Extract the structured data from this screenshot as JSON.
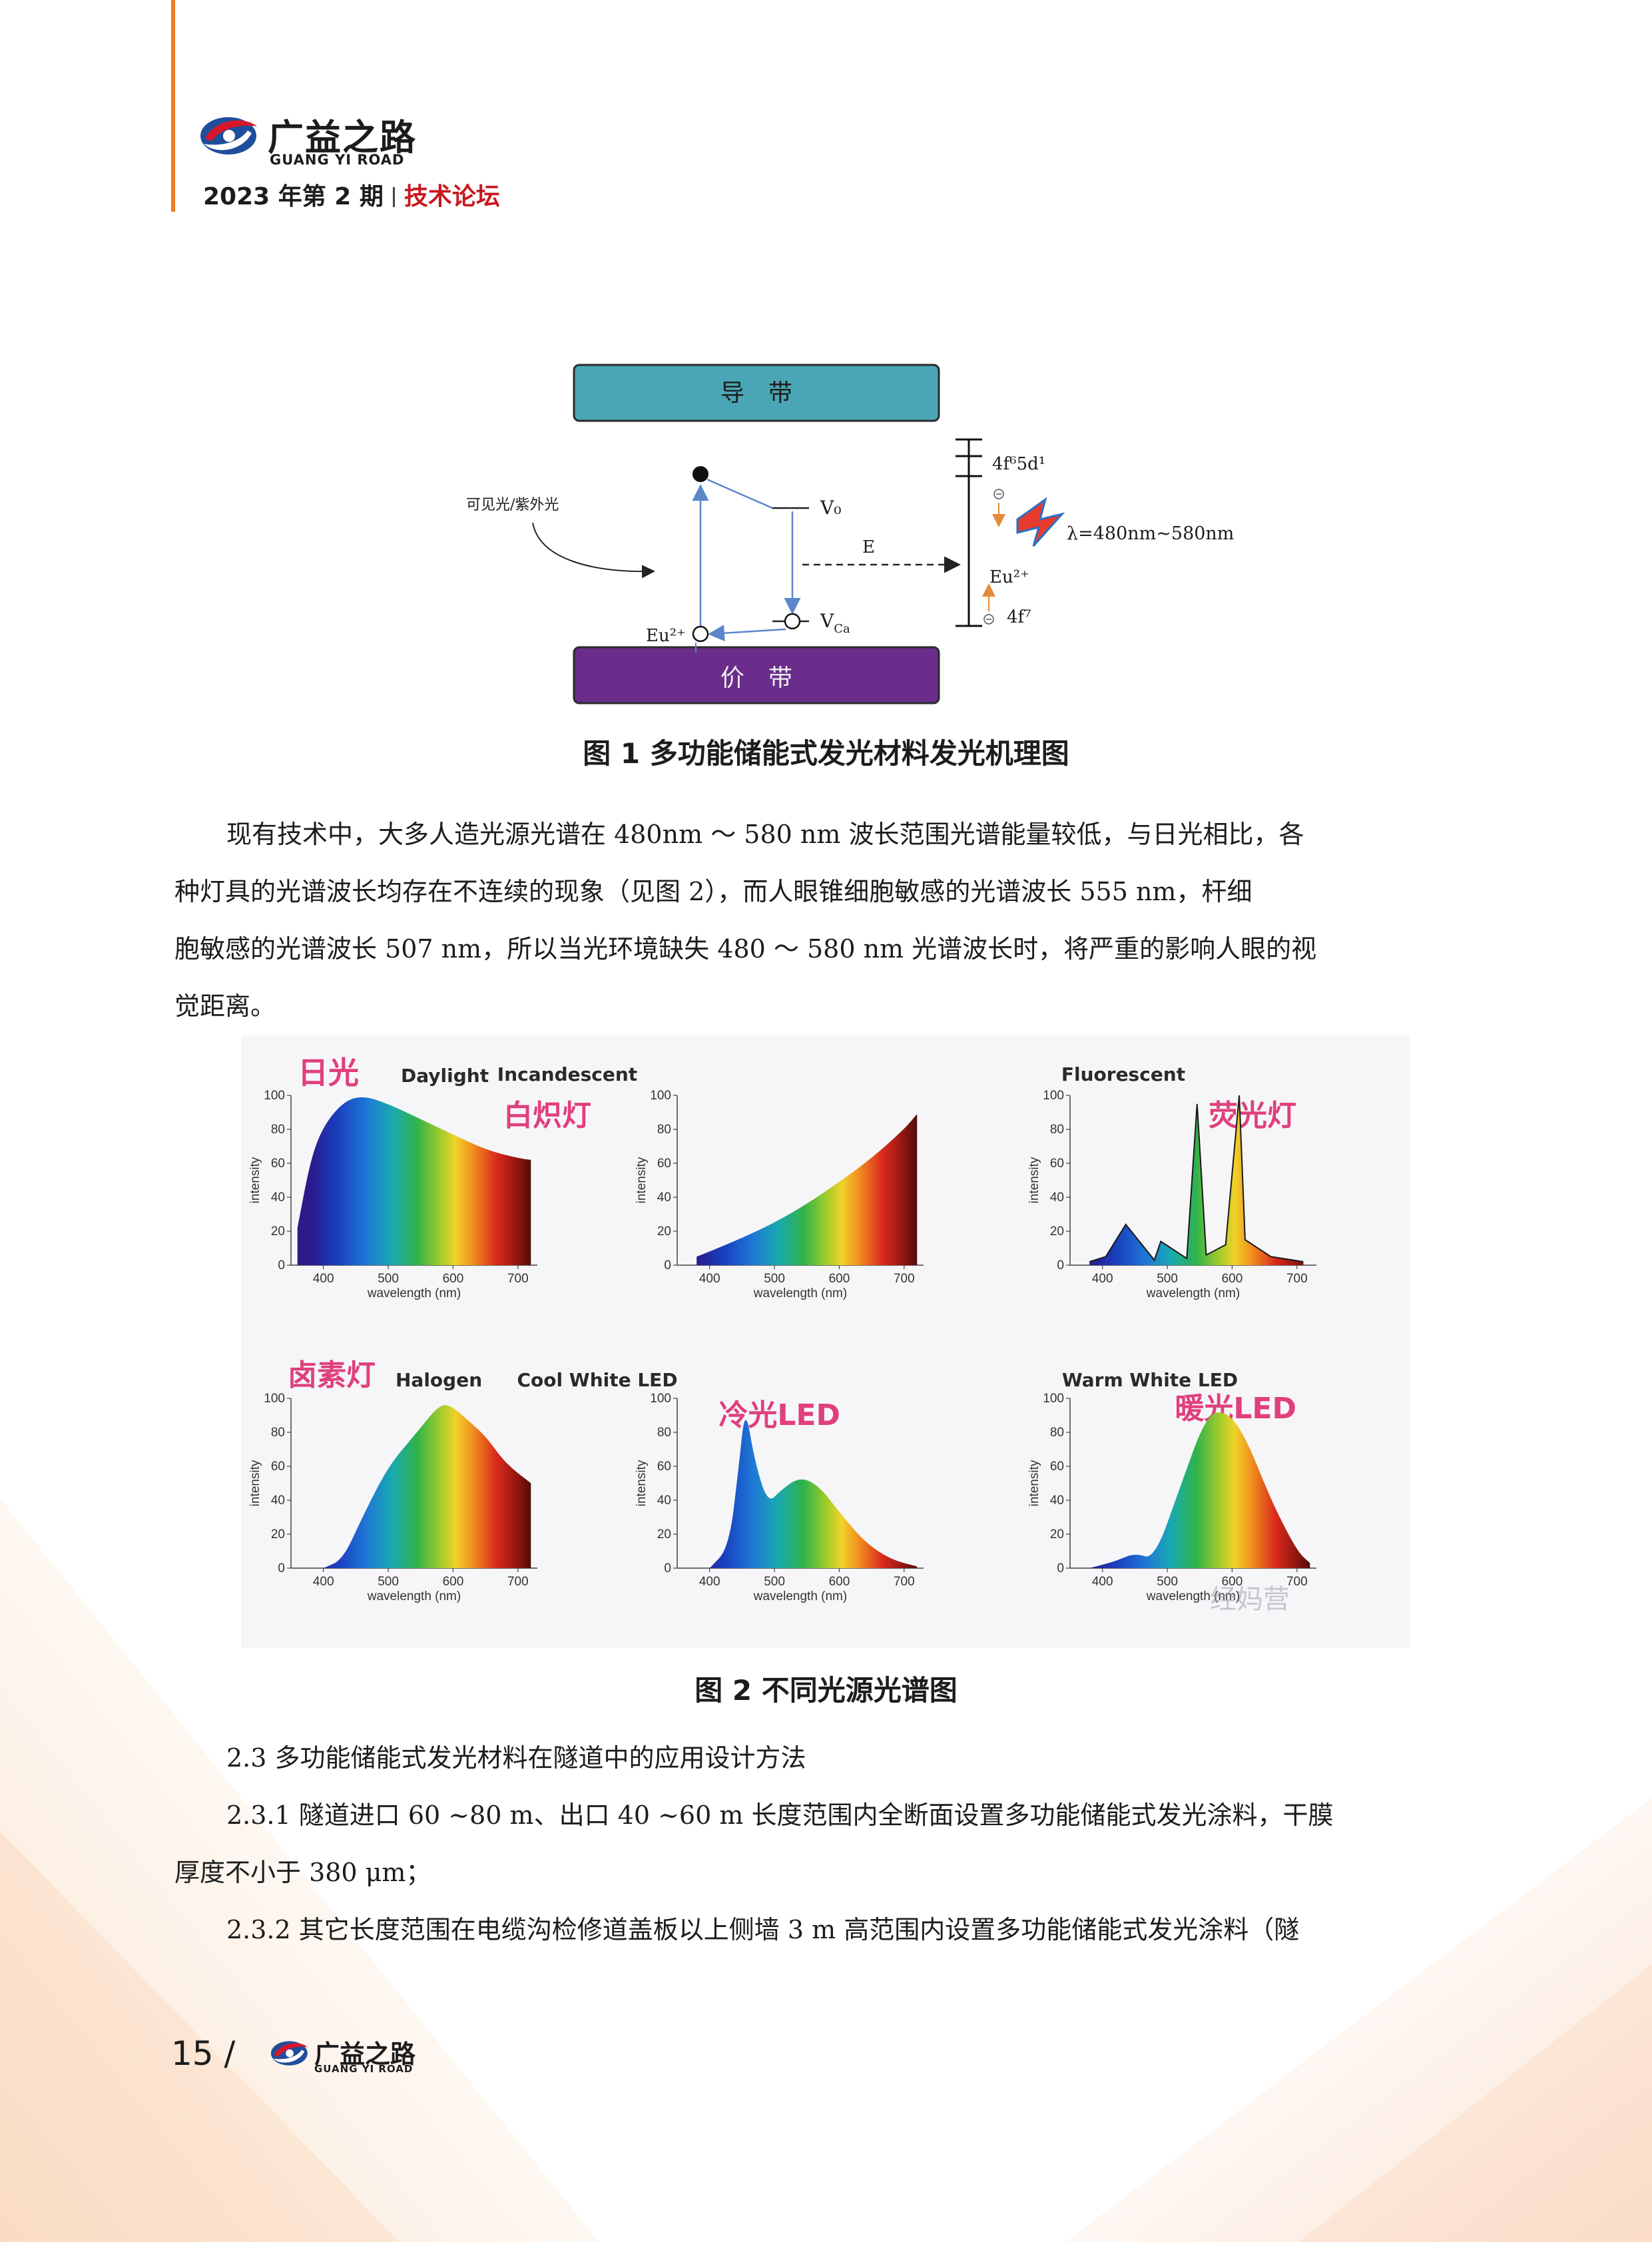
{
  "header": {
    "brand_cn": "广益之路",
    "brand_en": "GUANG YI ROAD",
    "issue": "2023 年第 2 期",
    "section": "技术论坛",
    "accent_color": "#ef7d22",
    "section_color": "#c9171e"
  },
  "figure1": {
    "conduction_band": "导　带",
    "valence_band": "价　带",
    "label_light": "可见光/紫外光",
    "label_v0": "V₀",
    "label_e": "E",
    "label_vca": "V",
    "label_vca_sub": "Ca",
    "label_eu_left": "Eu²⁺",
    "label_4f5d": "4f⁶5d¹",
    "label_lambda": "λ=480nm~580nm",
    "label_eu_right": "Eu²⁺",
    "label_4f7": "4f⁷",
    "caption": "图 1 多功能储能式发光材料发光机理图",
    "band_colors": {
      "conduction": "#4aa6b4",
      "valence": "#6b2d8c"
    }
  },
  "paragraph1": {
    "lines": [
      "现有技术中，大多人造光源光谱在 480nm ～ 580 nm 波长范围光谱能量较低，与日光相比，各",
      "种灯具的光谱波长均存在不连续的现象（见图 2），而人眼锥细胞敏感的光谱波长 555 nm，杆细",
      "胞敏感的光谱波长 507 nm，所以当光环境缺失 480 ～ 580 nm 光谱波长时，将严重的影响人眼的视",
      "觉距离。"
    ]
  },
  "figure2": {
    "caption": "图 2 不同光源光谱图",
    "watermark": "经妈营",
    "panels": [
      {
        "title_en": "Daylight",
        "title_cn": "日光"
      },
      {
        "title_en": "Incandescent",
        "title_cn": "白炽灯"
      },
      {
        "title_en": "Fluorescent",
        "title_cn": "荧光灯"
      },
      {
        "title_en": "Halogen",
        "title_cn": "卤素灯"
      },
      {
        "title_en": "Cool White LED",
        "title_cn": "冷光LED"
      },
      {
        "title_en": "Warm White LED",
        "title_cn": "暖光LED"
      }
    ],
    "axis": {
      "y_label": "intensity",
      "x_label": "wavelength (nm)",
      "y_ticks": [
        "0",
        "20",
        "40",
        "60",
        "80",
        "100"
      ],
      "x_ticks": [
        "400",
        "500",
        "600",
        "700"
      ]
    }
  },
  "chart_data": [
    {
      "type": "area",
      "title": "Daylight",
      "xlabel": "wavelength (nm)",
      "ylabel": "intensity",
      "xlim": [
        350,
        730
      ],
      "ylim": [
        0,
        100
      ],
      "x": [
        360,
        380,
        400,
        430,
        460,
        500,
        550,
        600,
        650,
        700,
        720
      ],
      "y": [
        22,
        62,
        82,
        96,
        100,
        95,
        86,
        77,
        68,
        63,
        62
      ]
    },
    {
      "type": "area",
      "title": "Incandescent",
      "xlabel": "wavelength (nm)",
      "ylabel": "intensity",
      "xlim": [
        350,
        730
      ],
      "ylim": [
        0,
        100
      ],
      "x": [
        380,
        400,
        450,
        500,
        550,
        600,
        650,
        700,
        720
      ],
      "y": [
        5,
        8,
        16,
        25,
        36,
        49,
        63,
        80,
        89
      ]
    },
    {
      "type": "line",
      "title": "Fluorescent",
      "xlabel": "wavelength (nm)",
      "ylabel": "intensity",
      "xlim": [
        350,
        730
      ],
      "ylim": [
        0,
        100
      ],
      "x": [
        380,
        405,
        436,
        480,
        490,
        530,
        546,
        560,
        590,
        611,
        620,
        660,
        710
      ],
      "y": [
        2,
        5,
        24,
        3,
        14,
        4,
        95,
        6,
        12,
        100,
        15,
        5,
        2
      ]
    },
    {
      "type": "area",
      "title": "Halogen",
      "xlabel": "wavelength (nm)",
      "ylabel": "intensity",
      "xlim": [
        350,
        730
      ],
      "ylim": [
        0,
        100
      ],
      "x": [
        400,
        430,
        460,
        500,
        540,
        580,
        600,
        620,
        650,
        680,
        720
      ],
      "y": [
        0,
        5,
        30,
        60,
        78,
        97,
        95,
        88,
        78,
        62,
        50
      ]
    },
    {
      "type": "area",
      "title": "Cool White LED",
      "xlabel": "wavelength (nm)",
      "ylabel": "intensity",
      "xlim": [
        350,
        730
      ],
      "ylim": [
        0,
        100
      ],
      "x": [
        400,
        430,
        445,
        455,
        470,
        490,
        510,
        540,
        570,
        600,
        640,
        680,
        720
      ],
      "y": [
        0,
        12,
        60,
        96,
        62,
        38,
        46,
        54,
        48,
        33,
        15,
        5,
        1
      ]
    },
    {
      "type": "area",
      "title": "Warm White LED",
      "xlabel": "wavelength (nm)",
      "ylabel": "intensity",
      "xlim": [
        350,
        730
      ],
      "ylim": [
        0,
        100
      ],
      "x": [
        380,
        420,
        450,
        480,
        520,
        560,
        590,
        620,
        660,
        700,
        720
      ],
      "y": [
        0,
        4,
        9,
        5,
        48,
        90,
        93,
        78,
        40,
        10,
        3
      ]
    }
  ],
  "section23": {
    "heading": "2.3 多功能储能式发光材料在隧道中的应用设计方法",
    "p231_line1": "2.3.1 隧道进口 60 ~80 m、出口 40 ~60 m 长度范围内全断面设置多功能储能式发光涂料，干膜",
    "p231_line2": "厚度不小于 380 μm；",
    "p232_line1": "2.3.2 其它长度范围在电缆沟检修道盖板以上侧墙 3 m 高范围内设置多功能储能式发光涂料（隧"
  },
  "footer": {
    "page": "15 /",
    "brand_cn": "广益之路",
    "brand_en": "GUANG YI ROAD"
  }
}
